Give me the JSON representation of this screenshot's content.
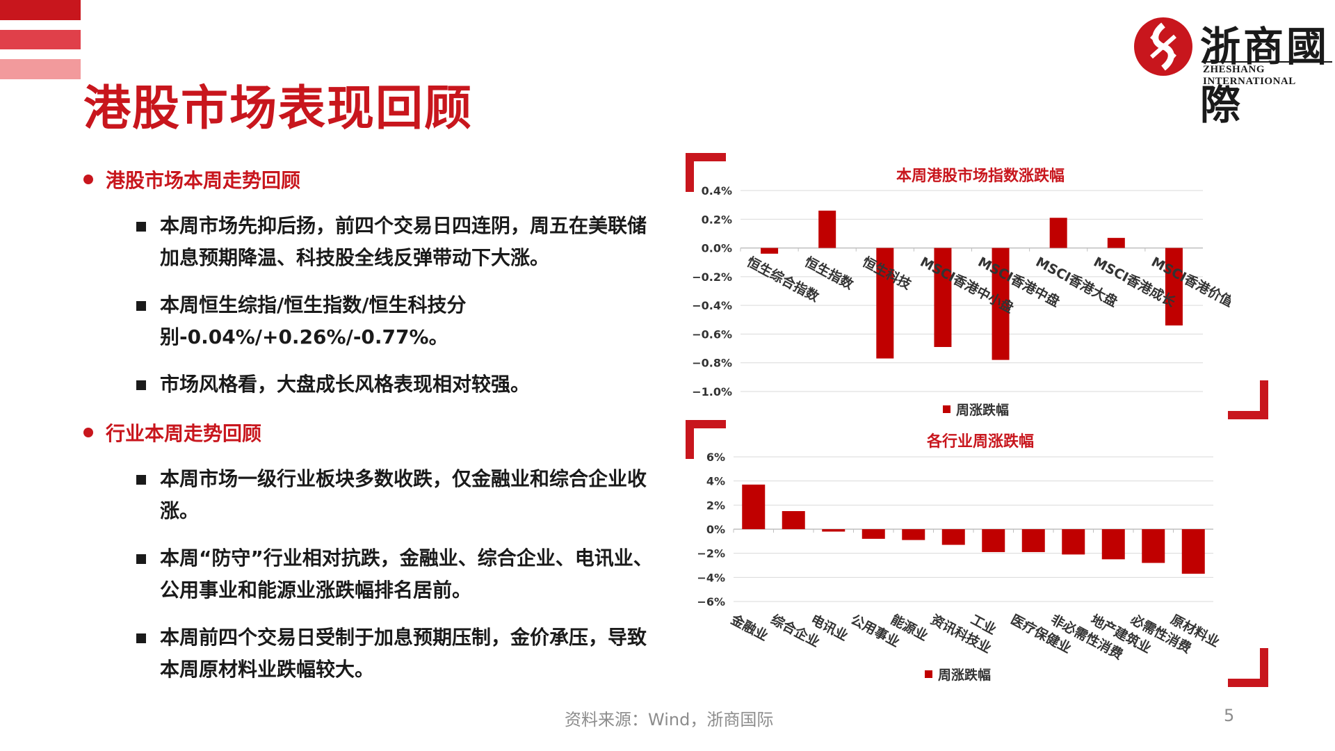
{
  "header": {
    "title": "港股市场表现回顾",
    "logo_cn": "浙商國際",
    "logo_en": "ZHESHANG INTERNATIONAL"
  },
  "colors": {
    "brand_red": "#c8161d",
    "bar_red": "#c00000"
  },
  "sections": [
    {
      "heading": "港股市场本周走势回顾",
      "items": [
        "本周市场先抑后扬，前四个交易日四连阴，周五在美联储加息预期降温、科技股全线反弹带动下大涨。",
        "本周恒生综指/恒生指数/恒生科技分别-0.04%/+0.26%/-0.77%。",
        "市场风格看，大盘成长风格表现相对较强。"
      ]
    },
    {
      "heading": "行业本周走势回顾",
      "items": [
        "本周市场一级行业板块多数收跌，仅金融业和综合企业收涨。",
        "本周“防守”行业相对抗跌，金融业、综合企业、电讯业、公用事业和能源业涨跌幅排名居前。",
        "本周前四个交易日受制于加息预期压制，金价承压，导致本周原材料业跌幅较大。"
      ]
    }
  ],
  "chart_data": [
    {
      "type": "bar",
      "title": "本周港股市场指数涨跌幅",
      "categories": [
        "恒生综合指数",
        "恒生指数",
        "恒生科技",
        "MSCI香港中小盘",
        "MSCI香港中盘",
        "MSCI香港大盘",
        "MSCI香港成长",
        "MSCI香港价值"
      ],
      "series": [
        {
          "name": "周涨跌幅",
          "values": [
            -0.04,
            0.26,
            -0.77,
            -0.69,
            -0.78,
            0.21,
            0.07,
            -0.54
          ]
        }
      ],
      "unit": "%",
      "ylim": [
        -1.0,
        0.4
      ],
      "ticks": [
        0.4,
        0.2,
        0.0,
        -0.2,
        -0.4,
        -0.6,
        -0.8,
        -1.0
      ],
      "tick_labels": [
        "0.4%",
        "0.2%",
        "0.0%",
        "−0.2%",
        "−0.4%",
        "−0.6%",
        "−0.8%",
        "−1.0%"
      ],
      "grid": true,
      "legend": "bottom"
    },
    {
      "type": "bar",
      "title": "各行业周涨跌幅",
      "categories": [
        "金融业",
        "综合企业",
        "电讯业",
        "公用事业",
        "能源业",
        "资讯科技业",
        "工业",
        "医疗保健业",
        "非必需性消费",
        "地产建筑业",
        "必需性消费",
        "原材料业"
      ],
      "series": [
        {
          "name": "周涨跌幅",
          "values": [
            3.7,
            1.5,
            -0.2,
            -0.8,
            -0.9,
            -1.3,
            -1.9,
            -1.9,
            -2.1,
            -2.5,
            -2.8,
            -3.7
          ]
        }
      ],
      "unit": "%",
      "ylim": [
        -6,
        6
      ],
      "ticks": [
        6,
        4,
        2,
        0,
        -2,
        -4,
        -6
      ],
      "tick_labels": [
        "6%",
        "4%",
        "2%",
        "0%",
        "−2%",
        "−4%",
        "−6%"
      ],
      "grid": true,
      "legend": "bottom"
    }
  ],
  "footer": {
    "source": "资料来源：Wind，浙商国际",
    "page": "5"
  }
}
